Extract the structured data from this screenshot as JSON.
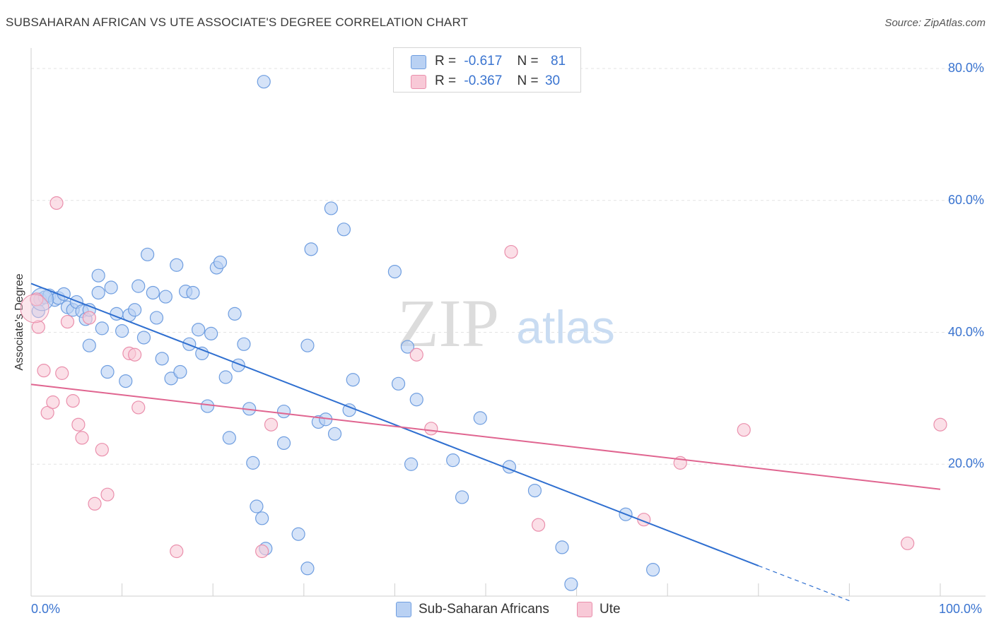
{
  "title": "SUBSAHARAN AFRICAN VS UTE ASSOCIATE'S DEGREE CORRELATION CHART",
  "source": "Source: ZipAtlas.com",
  "watermark": {
    "zip": "ZIP",
    "atlas": "atlas"
  },
  "colors": {
    "blue_fill": "#b9d1f3",
    "blue_stroke": "#6f9ee0",
    "blue_line": "#2f6fd0",
    "pink_fill": "#f8c9d7",
    "pink_stroke": "#ea8fac",
    "pink_line": "#e06590",
    "axis_text": "#3a74d0",
    "grid": "#e3e3e3"
  },
  "stats": [
    {
      "r_label": "R =",
      "r_value": "-0.617",
      "n_label": "N =",
      "n_value": "81"
    },
    {
      "r_label": "R =",
      "r_value": "-0.367",
      "n_label": "N =",
      "n_value": "30"
    }
  ],
  "chart_data": {
    "type": "scatter",
    "title": "SUBSAHARAN AFRICAN VS UTE ASSOCIATE'S DEGREE CORRELATION CHART",
    "xlabel": "",
    "ylabel": "Associate's Degree",
    "xlim": [
      0,
      100
    ],
    "ylim": [
      0,
      84
    ],
    "x_tick_labels": [
      "0.0%",
      "100.0%"
    ],
    "y_ticks": [
      20,
      40,
      60,
      80
    ],
    "y_tick_labels": [
      "20.0%",
      "40.0%",
      "60.0%",
      "80.0%"
    ],
    "grid": true,
    "legend_position": "bottom-center",
    "series": [
      {
        "name": "Sub-Saharan Africans",
        "color": "#b9d1f3",
        "trend": {
          "x": [
            0,
            80
          ],
          "y": [
            47.4,
            4.6
          ],
          "dashed_extension_to": [
            90,
            -0.7
          ]
        },
        "points": [
          [
            1.0,
            45.0
          ],
          [
            1.5,
            45.3
          ],
          [
            2.0,
            45.6
          ],
          [
            2.6,
            44.9
          ],
          [
            3.0,
            45.2
          ],
          [
            3.6,
            45.8
          ],
          [
            4.0,
            43.8
          ],
          [
            4.6,
            43.4
          ],
          [
            5.0,
            44.6
          ],
          [
            5.6,
            43.2
          ],
          [
            6.0,
            42.0
          ],
          [
            6.4,
            43.4
          ],
          [
            6.4,
            38.0
          ],
          [
            7.4,
            46.0
          ],
          [
            7.4,
            48.6
          ],
          [
            7.8,
            40.6
          ],
          [
            8.4,
            34.0
          ],
          [
            8.8,
            46.8
          ],
          [
            9.4,
            42.8
          ],
          [
            10.0,
            40.2
          ],
          [
            10.4,
            32.6
          ],
          [
            10.8,
            42.6
          ],
          [
            11.4,
            43.4
          ],
          [
            11.8,
            47.0
          ],
          [
            12.4,
            39.2
          ],
          [
            12.8,
            51.8
          ],
          [
            13.4,
            46.0
          ],
          [
            13.8,
            42.2
          ],
          [
            14.4,
            36.0
          ],
          [
            14.8,
            45.4
          ],
          [
            15.4,
            33.0
          ],
          [
            16.0,
            50.2
          ],
          [
            16.4,
            34.0
          ],
          [
            17.0,
            46.2
          ],
          [
            17.4,
            38.2
          ],
          [
            17.8,
            46.0
          ],
          [
            18.4,
            40.4
          ],
          [
            18.8,
            36.8
          ],
          [
            19.4,
            28.8
          ],
          [
            19.8,
            39.8
          ],
          [
            20.4,
            49.8
          ],
          [
            20.8,
            50.6
          ],
          [
            21.4,
            33.2
          ],
          [
            21.8,
            24.0
          ],
          [
            22.4,
            42.8
          ],
          [
            22.8,
            35.0
          ],
          [
            23.4,
            38.2
          ],
          [
            24.0,
            28.4
          ],
          [
            24.4,
            20.2
          ],
          [
            24.8,
            13.6
          ],
          [
            25.4,
            11.8
          ],
          [
            25.8,
            7.2
          ],
          [
            25.6,
            78.0
          ],
          [
            27.8,
            28.0
          ],
          [
            27.8,
            23.2
          ],
          [
            29.4,
            9.4
          ],
          [
            30.4,
            4.2
          ],
          [
            30.4,
            38.0
          ],
          [
            30.8,
            52.6
          ],
          [
            31.6,
            26.4
          ],
          [
            32.4,
            26.8
          ],
          [
            33.0,
            58.8
          ],
          [
            33.4,
            24.6
          ],
          [
            34.4,
            55.6
          ],
          [
            35.0,
            28.2
          ],
          [
            35.4,
            32.8
          ],
          [
            40.0,
            49.2
          ],
          [
            40.4,
            32.2
          ],
          [
            41.4,
            37.8
          ],
          [
            41.8,
            20.0
          ],
          [
            42.4,
            29.8
          ],
          [
            46.4,
            20.6
          ],
          [
            47.4,
            15.0
          ],
          [
            49.4,
            27.0
          ],
          [
            52.6,
            19.6
          ],
          [
            55.4,
            16.0
          ],
          [
            58.4,
            7.4
          ],
          [
            59.4,
            1.8
          ],
          [
            65.4,
            12.4
          ],
          [
            68.4,
            4.0
          ],
          [
            0.8,
            43.2
          ]
        ]
      },
      {
        "name": "Ute",
        "color": "#f8c9d7",
        "trend": {
          "x": [
            0,
            100
          ],
          "y": [
            32.1,
            16.2
          ]
        },
        "points": [
          [
            0.6,
            45.0
          ],
          [
            0.8,
            40.8
          ],
          [
            1.4,
            34.2
          ],
          [
            1.8,
            27.8
          ],
          [
            2.4,
            29.4
          ],
          [
            2.8,
            59.6
          ],
          [
            3.4,
            33.8
          ],
          [
            4.0,
            41.6
          ],
          [
            4.6,
            29.6
          ],
          [
            5.2,
            26.0
          ],
          [
            5.6,
            24.0
          ],
          [
            6.4,
            42.2
          ],
          [
            7.0,
            14.0
          ],
          [
            7.8,
            22.2
          ],
          [
            8.4,
            15.4
          ],
          [
            10.8,
            36.8
          ],
          [
            11.4,
            36.6
          ],
          [
            11.8,
            28.6
          ],
          [
            16.0,
            6.8
          ],
          [
            25.4,
            6.8
          ],
          [
            26.4,
            26.0
          ],
          [
            42.4,
            36.6
          ],
          [
            44.0,
            25.4
          ],
          [
            52.8,
            52.2
          ],
          [
            55.8,
            10.8
          ],
          [
            67.4,
            11.6
          ],
          [
            71.4,
            20.2
          ],
          [
            78.4,
            25.2
          ],
          [
            96.4,
            8.0
          ],
          [
            100.0,
            26.0
          ]
        ]
      }
    ]
  },
  "legend": [
    {
      "label": "Sub-Saharan Africans"
    },
    {
      "label": "Ute"
    }
  ]
}
